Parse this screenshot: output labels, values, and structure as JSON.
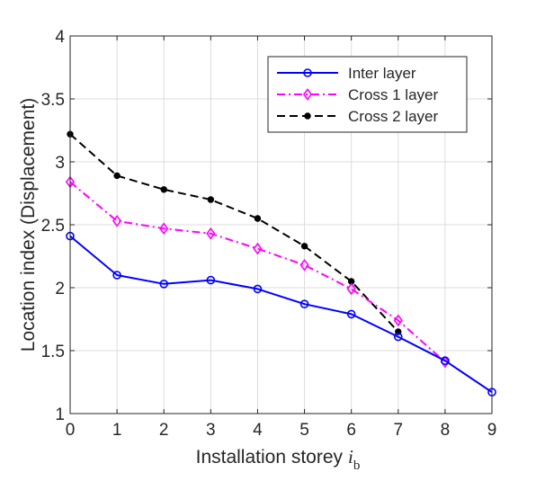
{
  "chart_data": {
    "type": "line",
    "xlabel": "Installation storey",
    "xlabel_var": "i",
    "xlabel_sub": "b",
    "ylabel": "Location index (Displacement)",
    "xlim": [
      0,
      9
    ],
    "ylim": [
      1,
      4
    ],
    "xticks": [
      "0",
      "1",
      "2",
      "3",
      "4",
      "5",
      "6",
      "7",
      "8",
      "9"
    ],
    "yticks": [
      "1",
      "1.5",
      "2",
      "2.5",
      "3",
      "3.5",
      "4"
    ],
    "grid": true,
    "legend_position": "top-right",
    "series": [
      {
        "name": "Inter layer",
        "color": "#0000ff",
        "line_style": "solid",
        "marker": "circle",
        "x": [
          0,
          1,
          2,
          3,
          4,
          5,
          6,
          7,
          8,
          9
        ],
        "y": [
          2.41,
          2.1,
          2.03,
          2.06,
          1.99,
          1.87,
          1.79,
          1.61,
          1.42,
          1.17
        ]
      },
      {
        "name": "Cross 1 layer",
        "color": "#ff00ff",
        "line_style": "dash-dot",
        "marker": "diamond",
        "x": [
          0,
          1,
          2,
          3,
          4,
          5,
          6,
          7,
          8
        ],
        "y": [
          2.84,
          2.53,
          2.47,
          2.43,
          2.31,
          2.18,
          1.99,
          1.74,
          1.41
        ]
      },
      {
        "name": "Cross 2 layer",
        "color": "#000000",
        "line_style": "dashed",
        "marker": "dot",
        "x": [
          0,
          1,
          2,
          3,
          4,
          5,
          6,
          7
        ],
        "y": [
          3.22,
          2.89,
          2.78,
          2.7,
          2.55,
          2.33,
          2.05,
          1.65
        ]
      }
    ]
  }
}
